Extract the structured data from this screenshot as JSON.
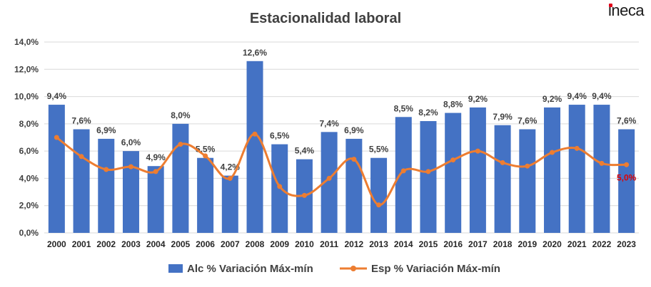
{
  "brand": {
    "logo_text": "ineca",
    "dot_color": "#e2001a"
  },
  "chart_data": {
    "type": "bar+line",
    "title": "Estacionalidad laboral",
    "categories": [
      "2000",
      "2001",
      "2002",
      "2003",
      "2004",
      "2005",
      "2006",
      "2007",
      "2008",
      "2009",
      "2010",
      "2011",
      "2012",
      "2013",
      "2014",
      "2015",
      "2016",
      "2017",
      "2018",
      "2019",
      "2020",
      "2021",
      "2022",
      "2023"
    ],
    "series": [
      {
        "name": "Alc % Variación Máx-mín",
        "type": "bar",
        "color": "#4472c4",
        "values": [
          9.4,
          7.6,
          6.9,
          6.0,
          4.9,
          8.0,
          5.5,
          4.2,
          12.6,
          6.5,
          5.4,
          7.4,
          6.9,
          5.5,
          8.5,
          8.2,
          8.8,
          9.2,
          7.9,
          7.6,
          9.2,
          9.4,
          9.4,
          7.6
        ],
        "labels": [
          "9,4%",
          "7,6%",
          "6,9%",
          "6,0%",
          "4,9%",
          "8,0%",
          "5,5%",
          "4,2%",
          "12,6%",
          "6,5%",
          "5,4%",
          "7,4%",
          "6,9%",
          "5,5%",
          "8,5%",
          "8,2%",
          "8,8%",
          "9,2%",
          "7,9%",
          "7,6%",
          "9,2%",
          "9,4%",
          "9,4%",
          "7,6%"
        ]
      },
      {
        "name": "Esp % Variación Máx-mín",
        "type": "line",
        "color": "#ed7d31",
        "values": [
          7.0,
          5.6,
          4.65,
          4.85,
          4.5,
          6.5,
          5.65,
          4.0,
          7.25,
          3.4,
          2.75,
          4.0,
          5.4,
          2.05,
          4.55,
          4.5,
          5.35,
          6.0,
          5.15,
          4.9,
          5.9,
          6.2,
          5.1,
          5.0
        ],
        "labels": {
          "23": "5,0%"
        },
        "label_color": "#e00000"
      }
    ],
    "y_axis": {
      "min": 0,
      "max": 14,
      "step": 2,
      "tick_labels": [
        "0,0%",
        "2,0%",
        "4,0%",
        "6,0%",
        "8,0%",
        "10,0%",
        "12,0%",
        "14,0%"
      ]
    },
    "grid": true,
    "legend_position": "bottom"
  }
}
